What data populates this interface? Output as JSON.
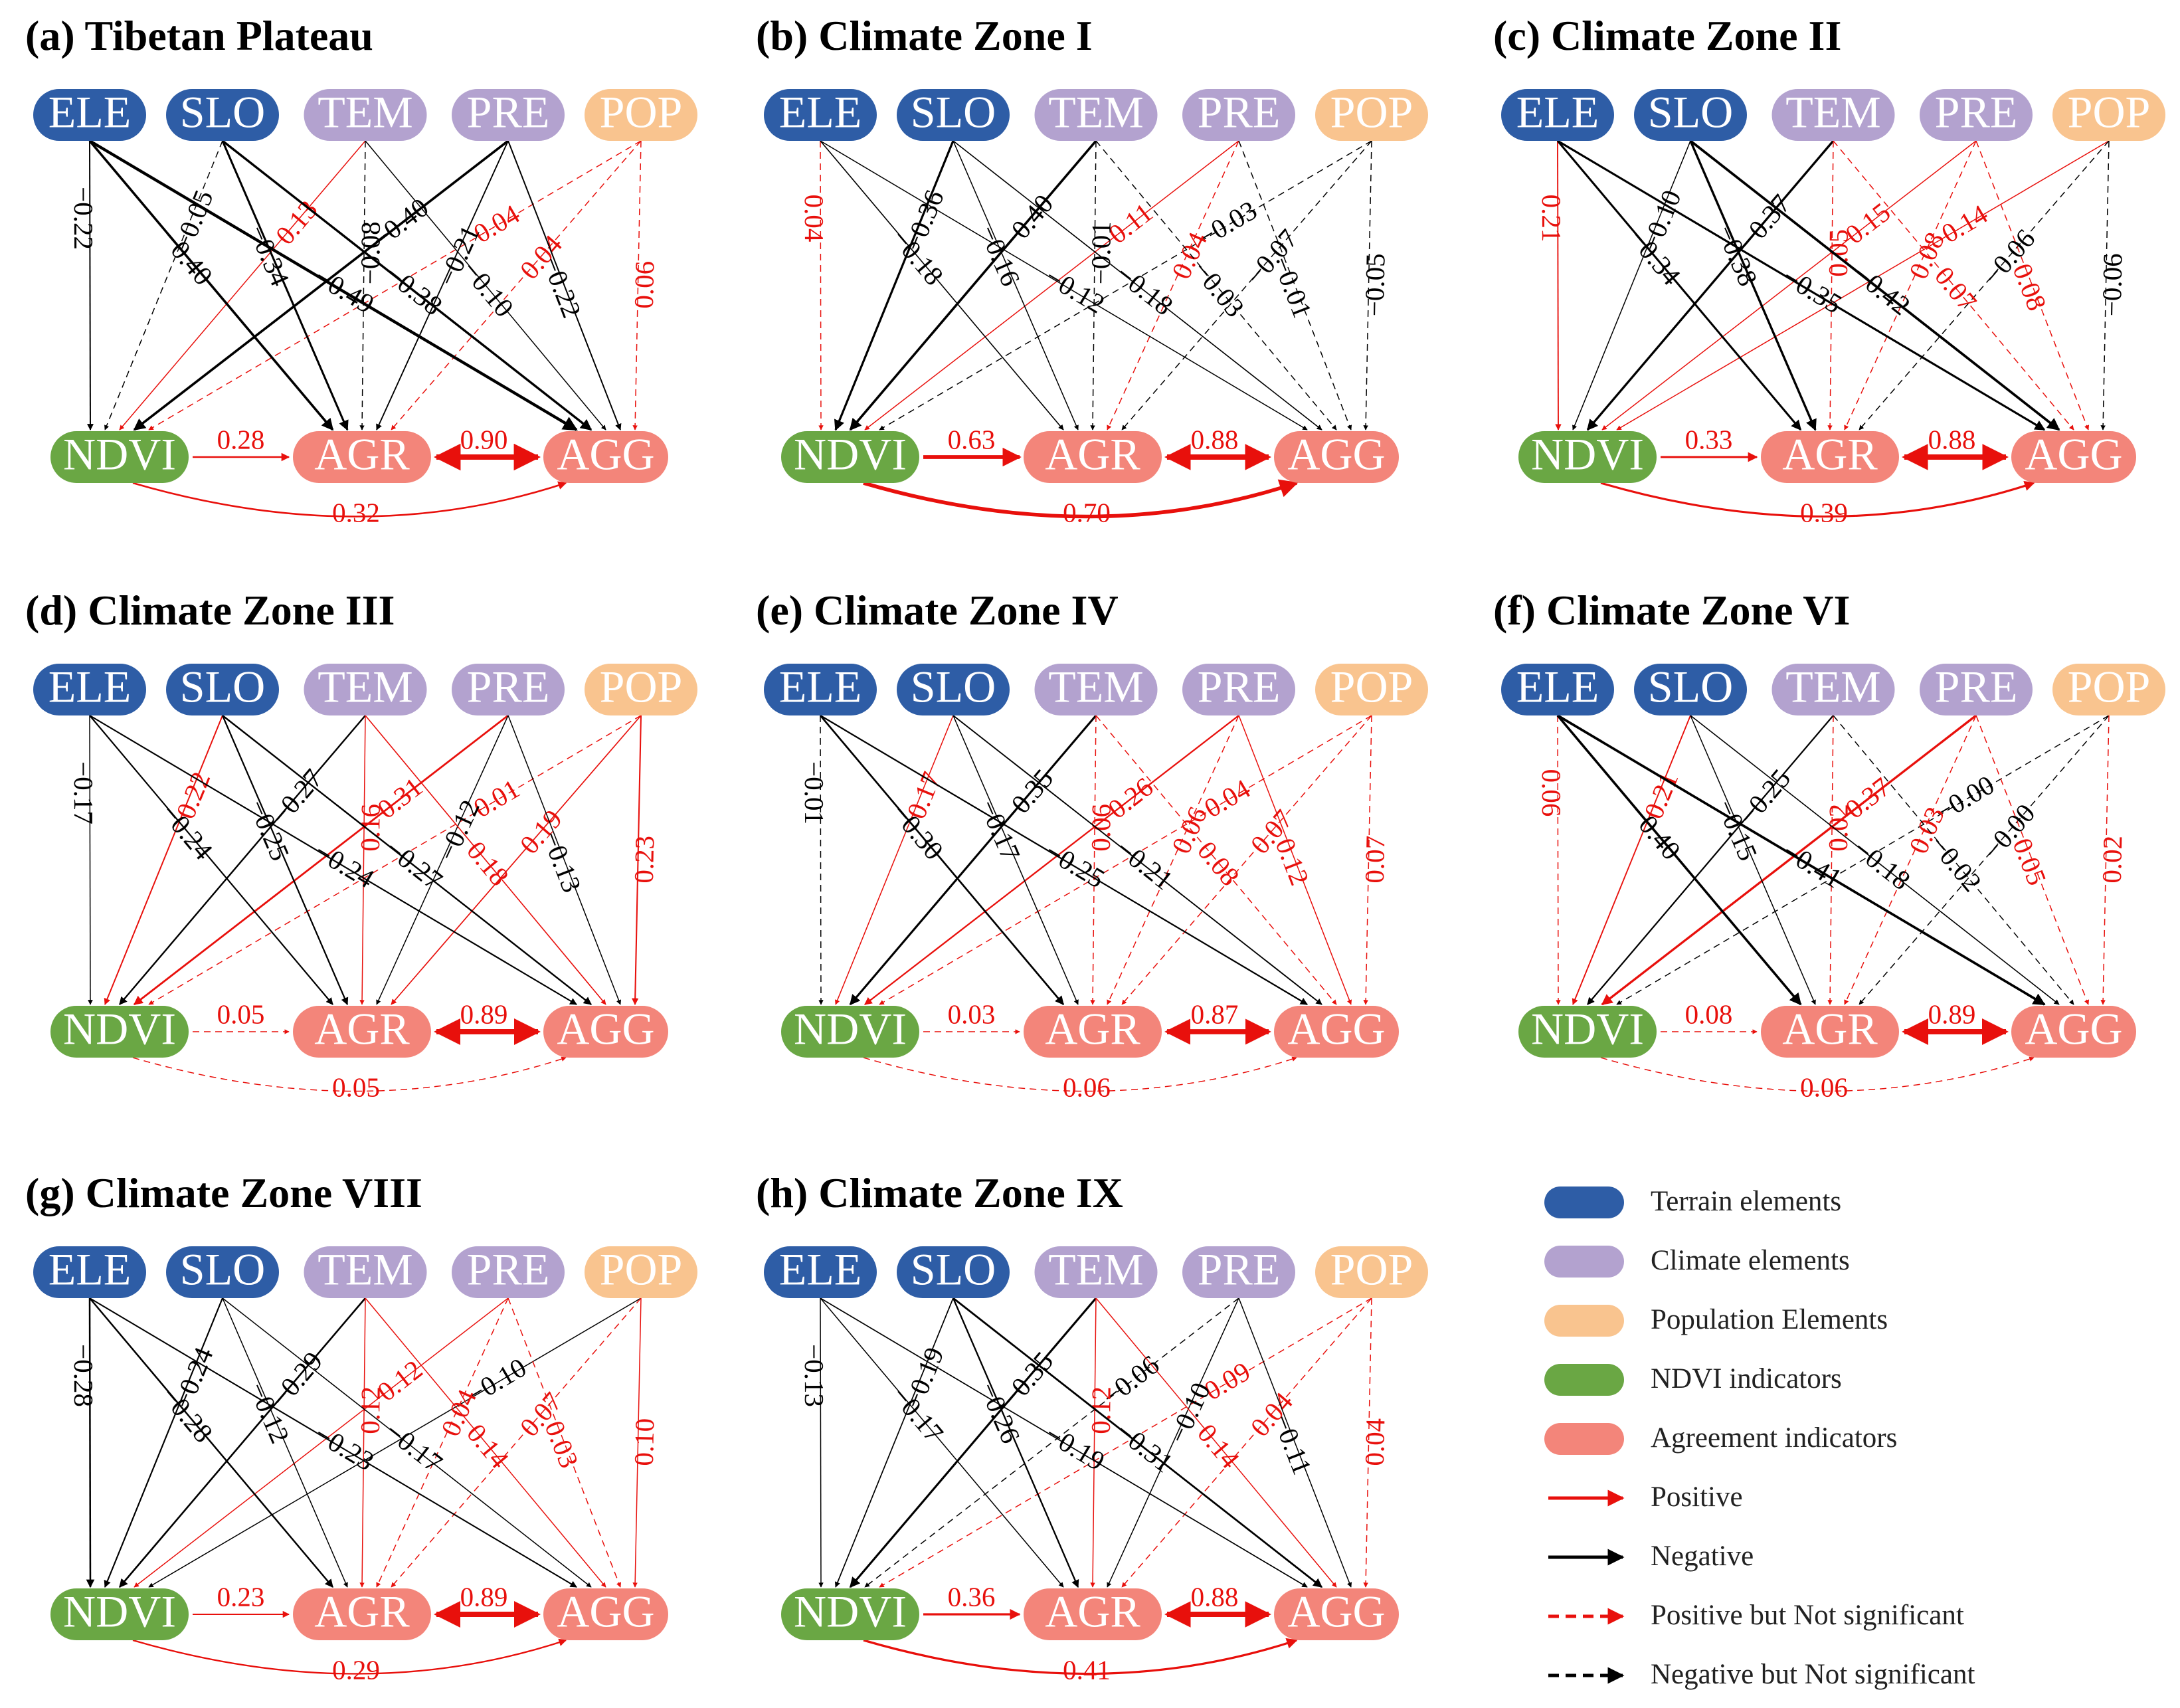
{
  "colors": {
    "terrain": "#2E5DA6",
    "climate": "#B3A2CF",
    "population": "#F9C48F",
    "ndvi": "#6AA744",
    "agreement": "#F3857A",
    "positive": "#E8100C",
    "negative": "#000000"
  },
  "nodes": {
    "top": [
      "ELE",
      "SLO",
      "TEM",
      "PRE",
      "POP"
    ],
    "bottom": [
      "NDVI",
      "AGR",
      "AGG"
    ]
  },
  "panels": [
    {
      "title": "(a) Tibetan Plateau",
      "to_ndvi": [
        "−0.22",
        "−0.05",
        "0.13",
        "−0.40",
        "0.04"
      ],
      "to_agr": [
        "−0.40",
        "−0.34",
        "−0.08",
        "−0.21",
        "0.04"
      ],
      "to_agg": [
        "−0.49",
        "−0.38",
        "−0.10",
        "−0.22",
        "0.06"
      ],
      "ndvi_agr": "0.28",
      "agr_agg": "0.90",
      "ndvi_agg": "0.32"
    },
    {
      "title": "(b) Climate Zone I",
      "to_ndvi": [
        "0.04",
        "−0.36",
        "−0.40",
        "0.11",
        "−0.03"
      ],
      "to_agr": [
        "−0.18",
        "−0.16",
        "−0.01",
        "0.04",
        "−0.07"
      ],
      "to_agg": [
        "−0.12",
        "−0.18",
        "−0.03",
        "−0.01",
        "−0.05"
      ],
      "ndvi_agr": "0.63",
      "agr_agg": "0.88",
      "ndvi_agg": "0.70"
    },
    {
      "title": "(c) Climate Zone II",
      "to_ndvi": [
        "0.21",
        "−0.10",
        "−0.37",
        "0.15",
        "0.14"
      ],
      "to_agr": [
        "−0.34",
        "−0.38",
        "0.05",
        "0.08",
        "−0.06"
      ],
      "to_agg": [
        "−0.35",
        "−0.42",
        "0.07",
        "0.08",
        "−0.06"
      ],
      "ndvi_agr": "0.33",
      "agr_agg": "0.88",
      "ndvi_agg": "0.39"
    },
    {
      "title": "(d) Climate Zone III",
      "to_ndvi": [
        "−0.17",
        "0.22",
        "−0.27",
        "0.31",
        "0.01"
      ],
      "to_agr": [
        "−0.24",
        "−0.25",
        "0.16",
        "−0.12",
        "0.19"
      ],
      "to_agg": [
        "−0.24",
        "−0.27",
        "0.18",
        "−0.13",
        "0.23"
      ],
      "ndvi_agr": "0.05",
      "agr_agg": "0.89",
      "ndvi_agg": "0.05"
    },
    {
      "title": "(e) Climate Zone IV",
      "to_ndvi": [
        "−0.01",
        "0.17",
        "−0.35",
        "0.26",
        "0.04"
      ],
      "to_agr": [
        "−0.30",
        "−0.17",
        "0.06",
        "0.06",
        "0.07"
      ],
      "to_agg": [
        "−0.25",
        "−0.21",
        "0.08",
        "0.12",
        "0.07"
      ],
      "ndvi_agr": "0.03",
      "agr_agg": "0.87",
      "ndvi_agg": "0.06"
    },
    {
      "title": "(f) Climate Zone VI",
      "to_ndvi": [
        "0.06",
        "0.21",
        "−0.25",
        "0.37",
        "−0.00"
      ],
      "to_agr": [
        "−0.40",
        "−0.15",
        "0.02",
        "0.03",
        "−0.00"
      ],
      "to_agg": [
        "−0.41",
        "−0.18",
        "−0.02",
        "0.05",
        "0.02"
      ],
      "ndvi_agr": "0.08",
      "agr_agg": "0.89",
      "ndvi_agg": "0.06"
    },
    {
      "title": "(g) Climate Zone VIII",
      "to_ndvi": [
        "−0.28",
        "−0.24",
        "−0.29",
        "0.12",
        "−0.10"
      ],
      "to_agr": [
        "−0.28",
        "−0.12",
        "0.12",
        "0.04",
        "0.07"
      ],
      "to_agg": [
        "−0.23",
        "−0.17",
        "0.14",
        "0.03",
        "0.10"
      ],
      "ndvi_agr": "0.23",
      "agr_agg": "0.89",
      "ndvi_agg": "0.29"
    },
    {
      "title": "(h) Climate Zone IX",
      "to_ndvi": [
        "−0.13",
        "−0.19",
        "−0.35",
        "−0.06",
        "0.09"
      ],
      "to_agr": [
        "−0.17",
        "−0.26",
        "0.12",
        "−0.10",
        "0.04"
      ],
      "to_agg": [
        "−0.19",
        "−0.31",
        "0.14",
        "−0.11",
        "0.04"
      ],
      "ndvi_agr": "0.36",
      "agr_agg": "0.88",
      "ndvi_agg": "0.41"
    }
  ],
  "legend": [
    {
      "label": "Terrain elements",
      "kind": "pill",
      "color": "terrain"
    },
    {
      "label": "Climate elements",
      "kind": "pill",
      "color": "climate"
    },
    {
      "label": "Population Elements",
      "kind": "pill",
      "color": "population"
    },
    {
      "label": "NDVI indicators",
      "kind": "pill",
      "color": "ndvi"
    },
    {
      "label": "Agreement indicators",
      "kind": "pill",
      "color": "agreement"
    },
    {
      "label": "Positive",
      "kind": "arrow",
      "color": "positive",
      "dashed": false
    },
    {
      "label": "Negative",
      "kind": "arrow",
      "color": "negative",
      "dashed": false
    },
    {
      "label": "Positive but Not significant",
      "kind": "arrow",
      "color": "positive",
      "dashed": true
    },
    {
      "label": "Negative but Not significant",
      "kind": "arrow",
      "color": "negative",
      "dashed": true
    }
  ]
}
